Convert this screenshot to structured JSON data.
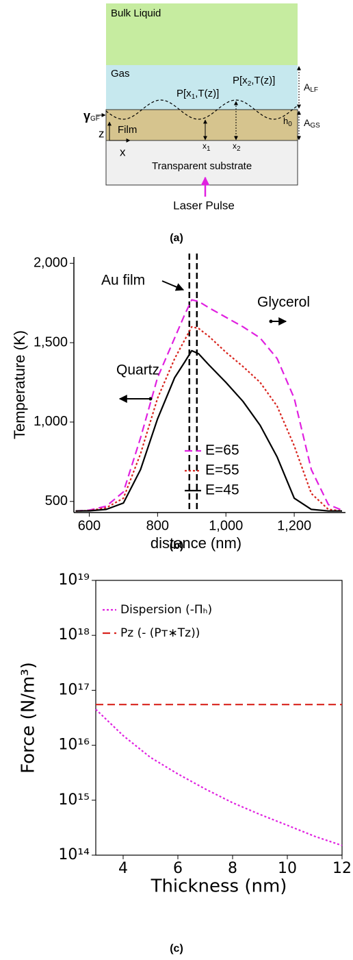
{
  "diagram": {
    "layers": {
      "bulk": "Bulk Liquid",
      "gas": "Gas",
      "film": "Film",
      "substrate": "Transparent substrate"
    },
    "p2": {
      "main": "P[x",
      "sub": "2",
      "rest": ",T(z)]"
    },
    "p1": {
      "main": "P[x",
      "sub": "1",
      "rest": ",T(z)]"
    },
    "gamma": {
      "main": "γ",
      "sub": "GF"
    },
    "z": "z",
    "x": "x",
    "x1": {
      "main": "x",
      "sub": "1"
    },
    "x2": {
      "main": "x",
      "sub": "2"
    },
    "h0": {
      "main": "h",
      "sub": "0"
    },
    "alf": {
      "main": "A",
      "sub": "LF"
    },
    "ags": {
      "main": "A",
      "sub": "GS"
    },
    "laser": "Laser Pulse",
    "caption": "(a)"
  },
  "chart_data": [
    {
      "type": "line",
      "caption": "(b)",
      "x_label": "distance (nm)",
      "y_label": "Temperature (K)",
      "x": [
        560,
        600,
        650,
        700,
        750,
        800,
        850,
        880,
        900,
        920,
        950,
        1000,
        1050,
        1100,
        1150,
        1200,
        1250,
        1300,
        1340
      ],
      "series": [
        {
          "name": "E=65",
          "color": "#e020e0",
          "style": "dashed",
          "values": [
            440,
            445,
            470,
            560,
            900,
            1280,
            1530,
            1680,
            1770,
            1760,
            1720,
            1660,
            1600,
            1530,
            1400,
            1150,
            700,
            480,
            445
          ]
        },
        {
          "name": "E=55",
          "color": "#d8231c",
          "style": "dotted",
          "values": [
            440,
            442,
            460,
            520,
            800,
            1150,
            1400,
            1520,
            1600,
            1590,
            1540,
            1440,
            1350,
            1250,
            1100,
            850,
            550,
            450,
            440
          ]
        },
        {
          "name": "E=45",
          "color": "#000000",
          "style": "solid",
          "values": [
            440,
            441,
            450,
            490,
            700,
            1020,
            1280,
            1380,
            1450,
            1430,
            1360,
            1250,
            1130,
            980,
            780,
            520,
            450,
            440,
            440
          ]
        }
      ],
      "vlines": [
        893,
        915
      ],
      "annotations": [
        "Au film",
        "Glycerol",
        "Quartz"
      ],
      "xlim": [
        555,
        1350
      ],
      "xticks": [
        600,
        800,
        {
          "value": 1000,
          "label": "1,000"
        },
        {
          "value": 1200,
          "label": "1,200"
        }
      ],
      "ylim": [
        430,
        2040
      ],
      "yticks": [
        500,
        {
          "value": 1000,
          "label": "1,000"
        },
        {
          "value": 1500,
          "label": "1,500"
        },
        {
          "value": 2000,
          "label": "2,000"
        }
      ],
      "log_y": false,
      "frame": false,
      "legend": "center right"
    },
    {
      "type": "line",
      "caption": "(c)",
      "x_label": "Thickness (nm)",
      "y_label": "Force (N/m³)",
      "x": [
        3,
        4,
        5,
        6,
        7,
        8,
        9,
        10,
        11,
        12
      ],
      "series": [
        {
          "name": "Dispersion (-Πₕ)",
          "color": "#e020e0",
          "style": "dotted",
          "values": [
            4.5e+16,
            1.5e+16,
            6000000000000000.0,
            3000000000000000.0,
            1600000000000000.0,
            900000000000000.0,
            550000000000000.0,
            350000000000000.0,
            220000000000000.0,
            150000000000000.0
          ]
        },
        {
          "name": "Pᴢ (- (Pᴛ∗Tᴢ))",
          "color": "#d8231c",
          "style": "dashed",
          "values": [
            5.5e+16,
            5.5e+16,
            5.5e+16,
            5.5e+16,
            5.5e+16,
            5.5e+16,
            5.5e+16,
            5.5e+16,
            5.5e+16,
            5.5e+16
          ]
        }
      ],
      "xlim": [
        3,
        12
      ],
      "xticks": [
        4,
        6,
        8,
        10,
        12
      ],
      "ylim": [
        100000000000000.0,
        1e+19
      ],
      "yticks": [
        {
          "value": 100000000000000.0,
          "label": "10¹⁴"
        },
        {
          "value": 1000000000000000.0,
          "label": "10¹⁵"
        },
        {
          "value": 1e+16,
          "label": "10¹⁶"
        },
        {
          "value": 1e+17,
          "label": "10¹⁷"
        },
        {
          "value": 1e+18,
          "label": "10¹⁸"
        },
        {
          "value": 1e+19,
          "label": "10¹⁹"
        }
      ],
      "log_y": true,
      "frame": true,
      "legend": "upper left"
    }
  ]
}
